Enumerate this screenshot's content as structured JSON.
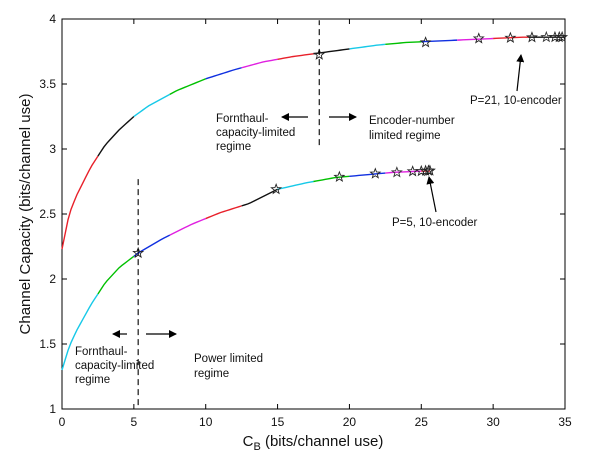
{
  "chart_data": {
    "type": "line",
    "xlabel": {
      "main": "C",
      "sub": "B",
      "rest": " (bits/channel use)"
    },
    "ylabel": "Channel Capacity (bits/channel use)",
    "xlim": [
      0,
      35
    ],
    "ylim": [
      1,
      4
    ],
    "xticks": [
      "0",
      "5",
      "10",
      "15",
      "20",
      "25",
      "30",
      "35"
    ],
    "yticks": [
      "1",
      "1.5",
      "2",
      "2.5",
      "3",
      "3.5",
      "4"
    ],
    "grid": false,
    "segment_colors": [
      "#e8202a",
      "#111111",
      "#17c9e8",
      "#00c000",
      "#1030e0",
      "#e020e0"
    ],
    "series": [
      {
        "annotation": "P=21, 10-encoder",
        "x": [
          0,
          0.5,
          1,
          2,
          3,
          4,
          5,
          6,
          8,
          10,
          12,
          14,
          16,
          18,
          20,
          22,
          24,
          26,
          28,
          30,
          32,
          34,
          35
        ],
        "y": [
          2.23,
          2.5,
          2.64,
          2.86,
          3.03,
          3.15,
          3.25,
          3.33,
          3.45,
          3.54,
          3.61,
          3.67,
          3.71,
          3.74,
          3.77,
          3.8,
          3.82,
          3.83,
          3.84,
          3.85,
          3.86,
          3.86,
          3.86
        ],
        "markers_x": [
          17.9,
          25.3,
          29,
          31.2,
          32.7,
          33.7,
          34.3,
          34.6,
          34.8
        ],
        "markers_y": [
          3.725,
          3.82,
          3.85,
          3.855,
          3.858,
          3.86,
          3.86,
          3.86,
          3.86
        ]
      },
      {
        "annotation": "P=5, 10-encoder",
        "x": [
          0,
          0.5,
          1,
          2,
          3,
          4,
          5.3,
          7,
          9,
          11,
          13,
          15,
          17,
          19,
          21,
          23,
          25,
          25.6
        ],
        "y": [
          1.3,
          1.48,
          1.6,
          1.8,
          1.97,
          2.09,
          2.2,
          2.31,
          2.42,
          2.51,
          2.58,
          2.69,
          2.74,
          2.78,
          2.8,
          2.82,
          2.83,
          2.83
        ],
        "markers_x": [
          5.3,
          14.9,
          19.3,
          21.8,
          23.3,
          24.4,
          25.0,
          25.3,
          25.5,
          25.6
        ],
        "markers_y": [
          2.2,
          2.69,
          2.785,
          2.81,
          2.82,
          2.828,
          2.83,
          2.832,
          2.833,
          2.833
        ]
      }
    ],
    "vlines": [
      {
        "x": 17.9,
        "y_from": 3.03,
        "y_to": 3.99
      },
      {
        "x": 5.3,
        "y_from": 1.03,
        "y_to": 2.78
      }
    ],
    "annotations": {
      "upper_left": [
        "Fornthaul-",
        "capacity-limited",
        "regime"
      ],
      "upper_right": [
        "Encoder-number",
        "limited regime"
      ],
      "lower_left": [
        "Fornthaul-",
        "capacity-limited",
        "regime"
      ],
      "lower_right": [
        "Power limited",
        "regime"
      ],
      "p21": "P=21, 10-encoder",
      "p5": "P=5, 10-encoder"
    }
  }
}
